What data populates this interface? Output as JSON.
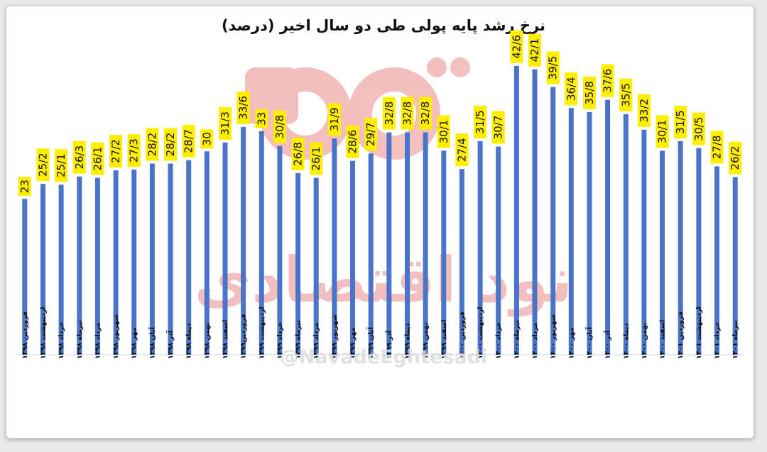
{
  "chart_data": {
    "type": "bar",
    "title": "نرخ رشد پایه پولی طی دو سال اخیر (درصد)",
    "xlabel": "",
    "ylabel": "",
    "ylim": [
      0,
      45
    ],
    "grid": false,
    "legend": "none",
    "bar_color": "#4a74c9",
    "highlight_color": "#ffee00",
    "categories": [
      "فروردین ۱۳۹۸",
      "اردیبهشت ۱۳۹۸",
      "خرداد ۱۳۹۸",
      "تیرماه ۱۳۹۸",
      "مرداد ۱۳۹۸",
      "شهریور ۱۳۹۸",
      "مهر ۱۳۹۸",
      "آبان ۱۳۹۸",
      "آذر ۱۳۹۸",
      "دیماه ۱۳۹۸",
      "بهمن ۱۳۹۸",
      "اسفند ۱۳۹۸",
      "فروردین۱۳۹۹",
      "اردیبهشت ۱۳۹۹",
      "خرداد ۱۳۹۹",
      "تیرماه ۱۳۹۹",
      "مرداد ۱۳۹۹",
      "شهریور ۱۳۹۹",
      "مهر ۱۳۹۹",
      "آبان ۱۳۹۹",
      "آذر ۱۳۹۹",
      "دیماه ۱۳۹۹",
      "بهمن ۱۳۹۹",
      "اسفند ۱۳۹۹",
      "فروردین ۱۴۰۰",
      "اردیبهشت ۱۴۰۰",
      "خرداد ۱۴۰۰",
      "تیرماه ۱۴۰۰",
      "مرداد ۱۴۰۰",
      "شهریور ۱۴۰۰",
      "مهر ۱۴۰۰",
      "آبان ۱۴۰۰",
      "آذر ۱۴۰۰",
      "دیماه ۱۴۰۰",
      "بهمن ۱۴۰۰",
      "اسفند ۱۴۰۰",
      "فروردین ۱۴۰۱",
      "اردیبهشت ۱۴۰۱",
      "خرداد ۱۴۰۱",
      "تیرماه ۱۴۰۱"
    ],
    "values": [
      23,
      25.2,
      25.1,
      26.3,
      26.1,
      27.2,
      27.3,
      28.2,
      28.2,
      28.7,
      30,
      31.3,
      33.6,
      33,
      30.8,
      26.8,
      26.1,
      31.9,
      28.6,
      29.7,
      32.8,
      32.8,
      32.8,
      30.1,
      27.4,
      31.5,
      30.7,
      42.6,
      42.1,
      39.5,
      36.4,
      35.8,
      37.6,
      35.5,
      33.2,
      30.1,
      31.5,
      30.5,
      27.8,
      26.2
    ],
    "value_labels": [
      "23",
      "25/2",
      "25/1",
      "26/3",
      "26/1",
      "27/2",
      "27/3",
      "28/2",
      "28/2",
      "28/7",
      "30",
      "31/3",
      "33/6",
      "33",
      "30/8",
      "26/8",
      "26/1",
      "31/9",
      "28/6",
      "29/7",
      "32/8",
      "32/8",
      "32/8",
      "30/1",
      "27/4",
      "31/5",
      "30/7",
      "42/6",
      "42/1",
      "39/5",
      "36/4",
      "35/8",
      "37/6",
      "35/5",
      "33/2",
      "30/1",
      "31/5",
      "30/5",
      "27/8",
      "26/2"
    ]
  },
  "watermark": {
    "brand_text": "نود اقتصادی",
    "handle": "@NavadeEghtesadi",
    "color": "#f2b8b8"
  }
}
